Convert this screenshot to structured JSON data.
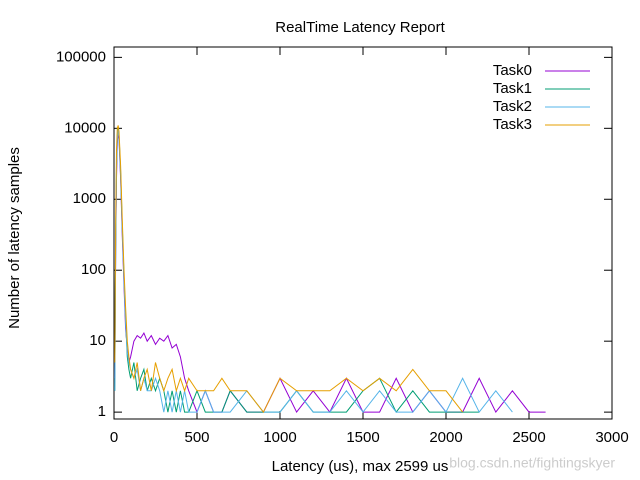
{
  "chart_data": {
    "type": "line",
    "title": "RealTime Latency Report",
    "x_label": "Latency (us), max 2599 us",
    "y_label": "Number of latency samples",
    "watermark": "blog.csdn.net/fightingskyer",
    "log_y": true,
    "legend": "top-right",
    "x": [
      5,
      10,
      15,
      20,
      25,
      30,
      40,
      50,
      60,
      70,
      80,
      90,
      100,
      120,
      140,
      160,
      180,
      200,
      225,
      250,
      275,
      300,
      325,
      350,
      375,
      400,
      425,
      450,
      500,
      550,
      600,
      650,
      700,
      800,
      900,
      1000,
      1100,
      1200,
      1300,
      1400,
      1500,
      1600,
      1700,
      1800,
      1900,
      2000,
      2100,
      2200,
      2300,
      2400,
      2500,
      2600
    ],
    "series": [
      {
        "name": "Task0",
        "color": "#9400d3",
        "values": [
          3,
          200,
          2000,
          6000,
          9000,
          7000,
          2000,
          300,
          60,
          15,
          8,
          5,
          6,
          10,
          12,
          11,
          13,
          10,
          12,
          9,
          11,
          10,
          12,
          8,
          9,
          6,
          3,
          2,
          1,
          2,
          1,
          1,
          2,
          1,
          1,
          3,
          1,
          2,
          1,
          3,
          1,
          1,
          3,
          1,
          2,
          1,
          1,
          3,
          1,
          2,
          1,
          1
        ]
      },
      {
        "name": "Task1",
        "color": "#009e73",
        "values": [
          2,
          300,
          3000,
          8000,
          10000,
          8000,
          2500,
          400,
          80,
          20,
          6,
          4,
          3,
          5,
          2,
          3,
          4,
          2,
          3,
          2,
          3,
          2,
          1,
          2,
          1,
          2,
          1,
          1,
          2,
          1,
          1,
          1,
          2,
          1,
          1,
          1,
          2,
          1,
          1,
          1,
          2,
          3,
          1,
          2,
          1,
          1,
          1,
          1,
          null,
          null,
          null,
          null
        ]
      },
      {
        "name": "Task2",
        "color": "#56b4e9",
        "values": [
          2,
          250,
          2500,
          7000,
          9500,
          7500,
          2200,
          350,
          70,
          18,
          7,
          5,
          4,
          3,
          4,
          2,
          3,
          2,
          2,
          3,
          2,
          1,
          2,
          1,
          2,
          1,
          2,
          1,
          1,
          2,
          1,
          1,
          1,
          2,
          1,
          1,
          2,
          1,
          1,
          2,
          1,
          2,
          1,
          1,
          2,
          1,
          3,
          1,
          2,
          1,
          null,
          null
        ]
      },
      {
        "name": "Task3",
        "color": "#e69f00",
        "values": [
          5,
          500,
          5000,
          10000,
          11000,
          9000,
          3000,
          500,
          100,
          30,
          10,
          6,
          4,
          3,
          5,
          2,
          3,
          4,
          2,
          5,
          3,
          2,
          3,
          4,
          2,
          3,
          2,
          3,
          2,
          2,
          2,
          3,
          2,
          2,
          1,
          3,
          2,
          2,
          2,
          3,
          2,
          3,
          2,
          4,
          2,
          2,
          1,
          null,
          null,
          null,
          null,
          null
        ]
      }
    ],
    "xlim": [
      0,
      3000
    ],
    "xticks": [
      0,
      500,
      1000,
      1500,
      2000,
      2500,
      3000
    ],
    "ylim": [
      0.8,
      140000
    ],
    "yticks": [
      1,
      10,
      100,
      1000,
      10000,
      100000
    ]
  }
}
